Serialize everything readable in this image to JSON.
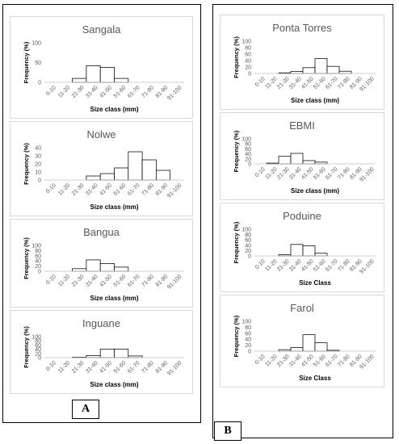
{
  "panels": [
    {
      "label": "A"
    },
    {
      "label": "B"
    }
  ],
  "chart_data": [
    {
      "type": "bar",
      "panel": "A",
      "title": "Sangala",
      "ylabel": "Frequency (%)",
      "xlabel": "Size class (mm)",
      "ylim": [
        0,
        100
      ],
      "yticks": [
        0,
        50,
        100
      ],
      "categories": [
        "0-10",
        "11-20",
        "21-30",
        "31-40",
        "41-50",
        "51-60",
        "61-70",
        "71-80",
        "81-90",
        "91-100"
      ],
      "values": [
        0,
        0,
        10,
        42,
        38,
        10,
        0,
        0,
        0,
        0
      ]
    },
    {
      "type": "bar",
      "panel": "A",
      "title": "Nolwe",
      "ylabel": "Frequency (%)",
      "xlabel": "Size class (mm)",
      "ylim": [
        0,
        40
      ],
      "yticks": [
        0,
        10,
        20,
        30,
        40
      ],
      "categories": [
        "0-10",
        "11-20",
        "21-30",
        "31-40",
        "41-50",
        "51-60",
        "61-70",
        "71-80",
        "81-90",
        "91-100"
      ],
      "values": [
        0,
        0,
        0,
        5,
        8,
        15,
        35,
        25,
        12,
        0
      ]
    },
    {
      "type": "bar",
      "panel": "A",
      "title": "Bangua",
      "ylabel": "Frequency (%)",
      "xlabel": "Size class (mm)",
      "ylim": [
        0,
        100
      ],
      "yticks": [
        0,
        20,
        40,
        60,
        80,
        100
      ],
      "categories": [
        "0-10",
        "11-20",
        "21-30",
        "31-40",
        "41-50",
        "51-60",
        "61-70",
        "71-80",
        "81-90",
        "91-100"
      ],
      "values": [
        0,
        0,
        10,
        44,
        30,
        16,
        0,
        0,
        0,
        0
      ]
    },
    {
      "type": "bar",
      "panel": "A",
      "title": "Inguane",
      "ylabel": "Frequency (%)",
      "xlabel": "Size class (mm)",
      "ylim": [
        0,
        100
      ],
      "yticks": [
        0,
        20,
        40,
        60,
        80,
        100
      ],
      "categories": [
        "0-10",
        "11-20",
        "21-30",
        "31-40",
        "41-50",
        "51-60",
        "61-70",
        "71-80",
        "81-90",
        "91-100"
      ],
      "values": [
        0,
        0,
        2,
        10,
        40,
        41,
        8,
        0,
        0,
        0
      ]
    },
    {
      "type": "bar",
      "panel": "B",
      "title": "Ponta Torres",
      "ylabel": "Frequency (%)",
      "xlabel": "Size class (mm)",
      "ylim": [
        0,
        100
      ],
      "yticks": [
        0,
        20,
        40,
        60,
        80,
        100
      ],
      "categories": [
        "0-10",
        "11-20",
        "21-30",
        "31-40",
        "41-50",
        "51-60",
        "61-70",
        "71-80",
        "81-90",
        "91-100"
      ],
      "values": [
        0,
        0,
        2,
        6,
        18,
        46,
        22,
        7,
        0,
        0
      ]
    },
    {
      "type": "bar",
      "panel": "B",
      "title": "EBMI",
      "ylabel": "Frequency (%)",
      "xlabel": "Size class (mm)",
      "ylim": [
        0,
        100
      ],
      "yticks": [
        0,
        20,
        40,
        60,
        80,
        100
      ],
      "categories": [
        "0-10",
        "11-20",
        "21-30",
        "31-40",
        "41-50",
        "51-60",
        "61-70",
        "71-80",
        "81-90",
        "91-100"
      ],
      "values": [
        0,
        3,
        30,
        42,
        13,
        7,
        0,
        0,
        0,
        0
      ]
    },
    {
      "type": "bar",
      "panel": "B",
      "title": "Poduine",
      "ylabel": "Frequency (%)",
      "xlabel": "Size Class",
      "ylim": [
        0,
        100
      ],
      "yticks": [
        0,
        20,
        40,
        60,
        80,
        100
      ],
      "categories": [
        "0-10",
        "11-20",
        "21-30",
        "31-40",
        "41-50",
        "51-60",
        "61-70",
        "71-80",
        "81-90",
        "91-100"
      ],
      "values": [
        0,
        0,
        5,
        43,
        38,
        10,
        0,
        0,
        0,
        0
      ]
    },
    {
      "type": "bar",
      "panel": "B",
      "title": "Farol",
      "ylabel": "Frequency (%)",
      "xlabel": "Size Class",
      "ylim": [
        0,
        100
      ],
      "yticks": [
        0,
        20,
        40,
        60,
        80,
        100
      ],
      "categories": [
        "0-10",
        "11-20",
        "21-30",
        "31-40",
        "41-50",
        "51-60",
        "61-70",
        "71-80",
        "81-90",
        "91-100"
      ],
      "values": [
        0,
        0,
        5,
        12,
        55,
        28,
        3,
        0,
        0,
        0
      ]
    }
  ]
}
